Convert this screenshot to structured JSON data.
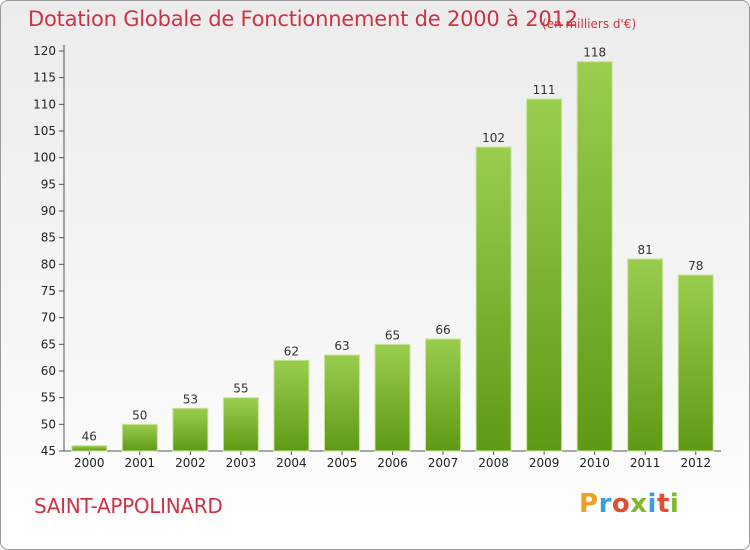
{
  "title": "Dotation Globale de Fonctionnement de 2000 à 2012",
  "unit_note": "(en milliers d'€)",
  "commune": "SAINT-APPOLINARD",
  "logo": {
    "p": "P",
    "r": "r",
    "o": "o",
    "x": "x",
    "i": "i",
    "t": "t",
    "i2": "i"
  },
  "colors": {
    "title": "#cc3344",
    "bar_top": "#9acd4e",
    "bar_bottom": "#5e9a16"
  },
  "chart_data": {
    "type": "bar",
    "title": "Dotation Globale de Fonctionnement de 2000 à 2012",
    "subtitle": "(en milliers d'€)",
    "xlabel": "",
    "ylabel": "",
    "categories": [
      "2000",
      "2001",
      "2002",
      "2003",
      "2004",
      "2005",
      "2006",
      "2007",
      "2008",
      "2009",
      "2010",
      "2011",
      "2012"
    ],
    "values": [
      46,
      50,
      53,
      55,
      62,
      63,
      65,
      66,
      102,
      111,
      118,
      81,
      78
    ],
    "ylim": [
      45,
      120
    ],
    "yticks": [
      45,
      50,
      55,
      60,
      65,
      70,
      75,
      80,
      85,
      90,
      95,
      100,
      105,
      110,
      115,
      120
    ],
    "grid": false,
    "legend": "none"
  }
}
